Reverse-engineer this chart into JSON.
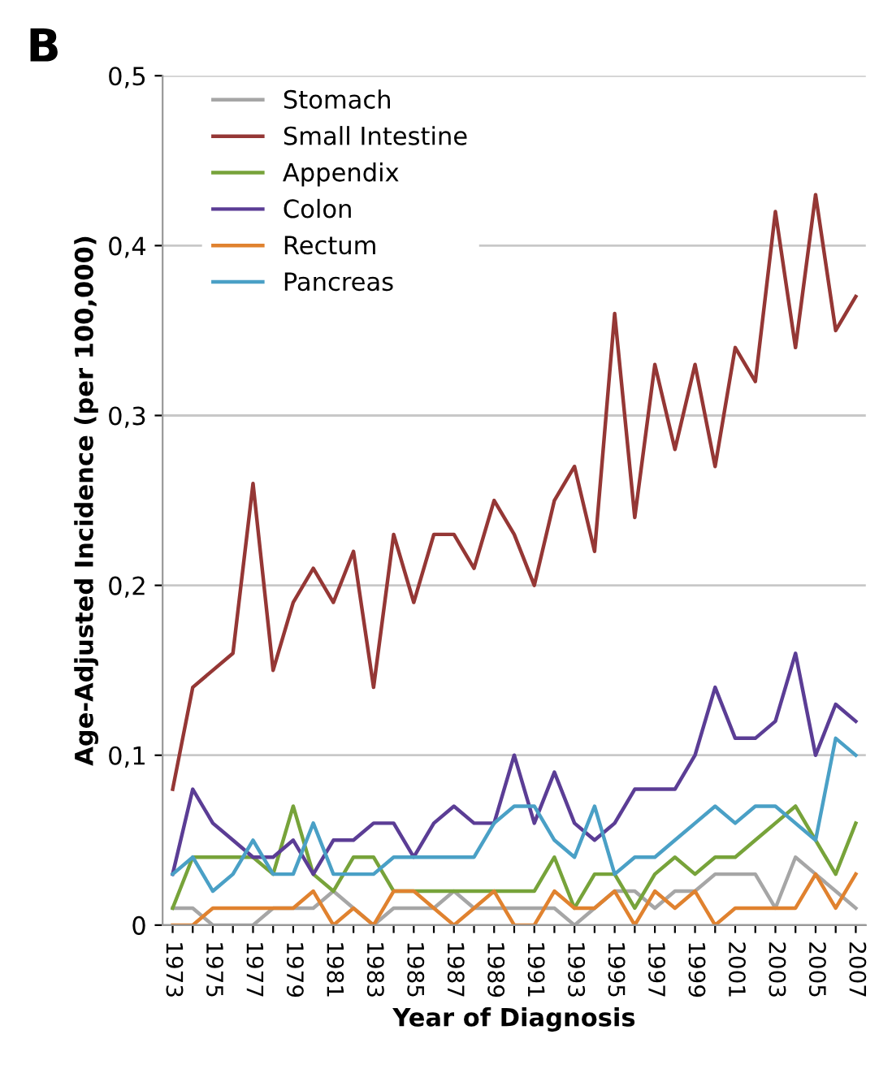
{
  "chart_data": {
    "type": "line",
    "xlabel": "Year of Diagnosis",
    "ylabel": "Age-Adjusted Incidence (per 100,000)",
    "annotations": [
      "B"
    ],
    "categories": [
      "1973",
      null,
      "1975",
      null,
      "1977",
      null,
      "1979",
      null,
      "1981",
      null,
      "1983",
      null,
      "1985",
      null,
      "1987",
      null,
      "1989",
      null,
      "1991",
      null,
      "1993",
      null,
      "1995",
      null,
      "1997",
      null,
      "1999",
      null,
      "2001",
      null,
      "2003",
      null,
      "2005",
      null,
      "2007"
    ],
    "ylim": [
      0,
      0.5
    ],
    "yticks": [
      {
        "value": 0,
        "label": "0"
      },
      {
        "value": 0.1,
        "label": "0,1"
      },
      {
        "value": 0.2,
        "label": "0,2"
      },
      {
        "value": 0.3,
        "label": "0,3"
      },
      {
        "value": 0.4,
        "label": "0,4"
      },
      {
        "value": 0.5,
        "label": "0,5"
      }
    ],
    "grid": "y",
    "legend": "top left",
    "marker": "none",
    "line_style": "solid",
    "series": [
      {
        "name": "Stomach",
        "color": "#a6a6a6",
        "values": [
          0.01,
          0.01,
          0.0,
          0.0,
          0.0,
          0.01,
          0.01,
          0.01,
          0.02,
          0.01,
          0.0,
          0.01,
          0.01,
          0.01,
          0.02,
          0.01,
          0.01,
          0.01,
          0.01,
          0.01,
          0.0,
          0.01,
          0.02,
          0.02,
          0.01,
          0.02,
          0.02,
          0.03,
          0.03,
          0.03,
          0.01,
          0.04,
          0.03,
          0.02,
          0.01
        ]
      },
      {
        "name": "Small Intestine",
        "color": "#953735",
        "values": [
          0.08,
          0.14,
          0.15,
          0.16,
          0.26,
          0.15,
          0.19,
          0.21,
          0.19,
          0.22,
          0.14,
          0.23,
          0.19,
          0.23,
          0.23,
          0.21,
          0.25,
          0.23,
          0.2,
          0.25,
          0.27,
          0.22,
          0.36,
          0.24,
          0.33,
          0.28,
          0.33,
          0.27,
          0.34,
          0.32,
          0.42,
          0.34,
          0.43,
          0.35,
          0.37
        ]
      },
      {
        "name": "Appendix",
        "color": "#77a33a",
        "values": [
          0.01,
          0.04,
          0.04,
          0.04,
          0.04,
          0.03,
          0.07,
          0.03,
          0.02,
          0.04,
          0.04,
          0.02,
          0.02,
          0.02,
          0.02,
          0.02,
          0.02,
          0.02,
          0.02,
          0.04,
          0.01,
          0.03,
          0.03,
          0.01,
          0.03,
          0.04,
          0.03,
          0.04,
          0.04,
          0.05,
          0.06,
          0.07,
          0.05,
          0.03,
          0.06
        ]
      },
      {
        "name": "Colon",
        "color": "#5b3d95",
        "values": [
          0.03,
          0.08,
          0.06,
          0.05,
          0.04,
          0.04,
          0.05,
          0.03,
          0.05,
          0.05,
          0.06,
          0.06,
          0.04,
          0.06,
          0.07,
          0.06,
          0.06,
          0.1,
          0.06,
          0.09,
          0.06,
          0.05,
          0.06,
          0.08,
          0.08,
          0.08,
          0.1,
          0.14,
          0.11,
          0.11,
          0.12,
          0.16,
          0.1,
          0.13,
          0.12
        ]
      },
      {
        "name": "Rectum",
        "color": "#e0822f",
        "values": [
          0.0,
          0.0,
          0.01,
          0.01,
          0.01,
          0.01,
          0.01,
          0.02,
          0.0,
          0.01,
          0.0,
          0.02,
          0.02,
          0.01,
          0.0,
          0.01,
          0.02,
          0.0,
          0.0,
          0.02,
          0.01,
          0.01,
          0.02,
          0.0,
          0.02,
          0.01,
          0.02,
          0.0,
          0.01,
          0.01,
          0.01,
          0.01,
          0.03,
          0.01,
          0.03
        ]
      },
      {
        "name": "Pancreas",
        "color": "#4aa0c6",
        "values": [
          0.03,
          0.04,
          0.02,
          0.03,
          0.05,
          0.03,
          0.03,
          0.06,
          0.03,
          0.03,
          0.03,
          0.04,
          0.04,
          0.04,
          0.04,
          0.04,
          0.06,
          0.07,
          0.07,
          0.05,
          0.04,
          0.07,
          0.03,
          0.04,
          0.04,
          0.05,
          0.06,
          0.07,
          0.06,
          0.07,
          0.07,
          0.06,
          0.05,
          0.11,
          0.1
        ]
      }
    ]
  }
}
